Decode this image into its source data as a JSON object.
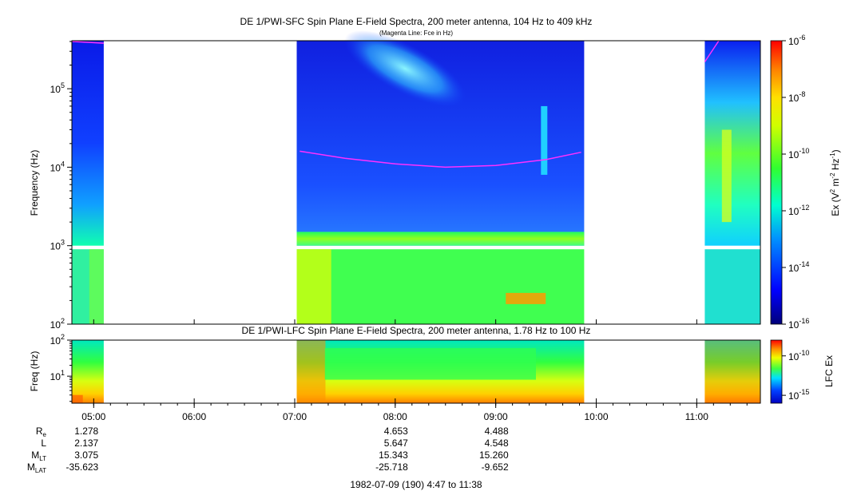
{
  "chart_data": [
    {
      "type": "heatmap",
      "title": "DE 1/PWI-SFC  Spin Plane E-Field Spectra, 200 meter antenna, 104 Hz to 409 kHz",
      "subtitle": "(Magenta Line: Fce in Hz)",
      "ylabel": "Frequency (Hz)",
      "yscale": "log",
      "ylim": [
        100,
        409000
      ],
      "ytick_exponents": [
        "5",
        "4",
        "3",
        "2"
      ],
      "ytick_base": "10",
      "colorbar": {
        "label_main": "Ex (V",
        "label_sup1": "2",
        "label_mid": " m",
        "label_sup2": "-2",
        "label_hz": " Hz",
        "label_sup3": "-1",
        "label_end": ")",
        "scale": "log",
        "range": [
          1e-16,
          1e-06
        ],
        "tick_exponents": [
          "-6",
          "-8",
          "-10",
          "-12",
          "-14",
          "-16"
        ],
        "tick_base": "10"
      },
      "data_segments_hours": [
        [
          4.78,
          5.1
        ],
        [
          7.02,
          9.88
        ],
        [
          11.08,
          11.63
        ]
      ],
      "fce_line": [
        {
          "t": 4.78,
          "f": 400000
        },
        {
          "t": 5.1,
          "f": 380000
        },
        {
          "t": 7.05,
          "f": 16000
        },
        {
          "t": 7.5,
          "f": 13000
        },
        {
          "t": 8.0,
          "f": 11000
        },
        {
          "t": 8.5,
          "f": 10000
        },
        {
          "t": 9.0,
          "f": 10500
        },
        {
          "t": 9.5,
          "f": 12500
        },
        {
          "t": 9.85,
          "f": 15500
        },
        {
          "t": 11.08,
          "f": 220000
        },
        {
          "t": 11.22,
          "f": 409000
        }
      ]
    },
    {
      "type": "heatmap",
      "title": "DE 1/PWI-LFC  Spin Plane E-Field Spectra, 200 meter antenna, 1.78 Hz to 100 Hz",
      "ylabel": "Freq (Hz)",
      "yscale": "log",
      "ylim": [
        1.78,
        100
      ],
      "ytick_exponents": [
        "2",
        "1"
      ],
      "ytick_base": "10",
      "colorbar": {
        "label": "LFC Ex",
        "scale": "log",
        "range": [
          1e-16,
          1e-08
        ],
        "tick_exponents": [
          "-10",
          "-15"
        ],
        "tick_base": "10"
      },
      "data_segments_hours": [
        [
          4.78,
          5.1
        ],
        [
          7.02,
          9.88
        ],
        [
          11.08,
          11.63
        ]
      ]
    }
  ],
  "time_axis": {
    "start_hours": 4.783,
    "end_hours": 11.633,
    "tick_hours": [
      5,
      6,
      7,
      8,
      9,
      10,
      11
    ],
    "tick_labels": [
      "05:00",
      "06:00",
      "07:00",
      "08:00",
      "09:00",
      "10:00",
      "11:00"
    ]
  },
  "ephemeris": {
    "rows": [
      {
        "label": "R",
        "sub": "e",
        "values": [
          "1.278",
          "4.653",
          "4.488"
        ]
      },
      {
        "label": "L",
        "sub": "",
        "values": [
          "2.137",
          "5.647",
          "4.548"
        ]
      },
      {
        "label": "M",
        "sub": "LT",
        "values": [
          "3.075",
          "15.343",
          "15.260"
        ]
      },
      {
        "label": "M",
        "sub": "LAT",
        "values": [
          "-35.623",
          "-25.718",
          "-9.652"
        ]
      }
    ],
    "value_hours": [
      4.92,
      8.0,
      9.0
    ]
  },
  "footer": "1982-07-09 (190) 4:47 to 11:38"
}
